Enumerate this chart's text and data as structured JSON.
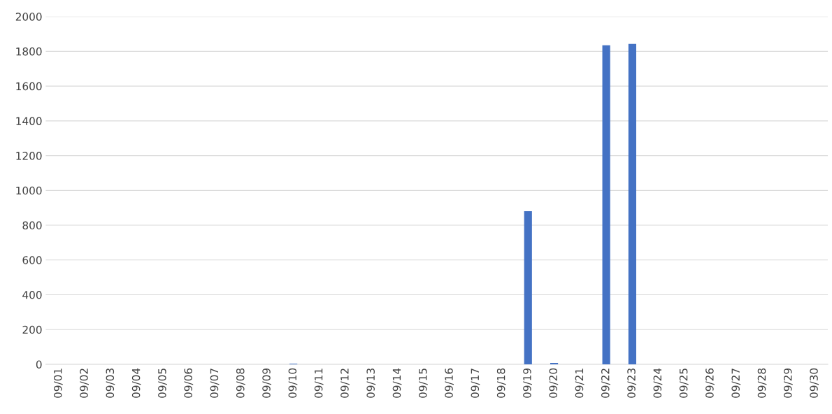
{
  "chart_data": {
    "type": "bar",
    "categories": [
      "09/01",
      "09/02",
      "09/03",
      "09/04",
      "09/05",
      "09/06",
      "09/07",
      "09/08",
      "09/09",
      "09/10",
      "09/11",
      "09/12",
      "09/13",
      "09/14",
      "09/15",
      "09/16",
      "09/17",
      "09/18",
      "09/19",
      "09/20",
      "09/21",
      "09/22",
      "09/23",
      "09/24",
      "09/25",
      "09/26",
      "09/27",
      "09/28",
      "09/29",
      "09/30"
    ],
    "values": [
      0,
      0,
      0,
      0,
      0,
      0,
      0,
      0,
      0,
      4,
      0,
      0,
      0,
      0,
      0,
      0,
      0,
      0,
      881,
      8,
      0,
      1835,
      1843,
      0,
      0,
      0,
      0,
      0,
      0,
      0
    ],
    "color": "#4472c4",
    "ylim": [
      0,
      2000
    ],
    "yticks": [
      0,
      200,
      400,
      600,
      800,
      1000,
      1200,
      1400,
      1600,
      1800,
      2000
    ],
    "grid": "y"
  }
}
